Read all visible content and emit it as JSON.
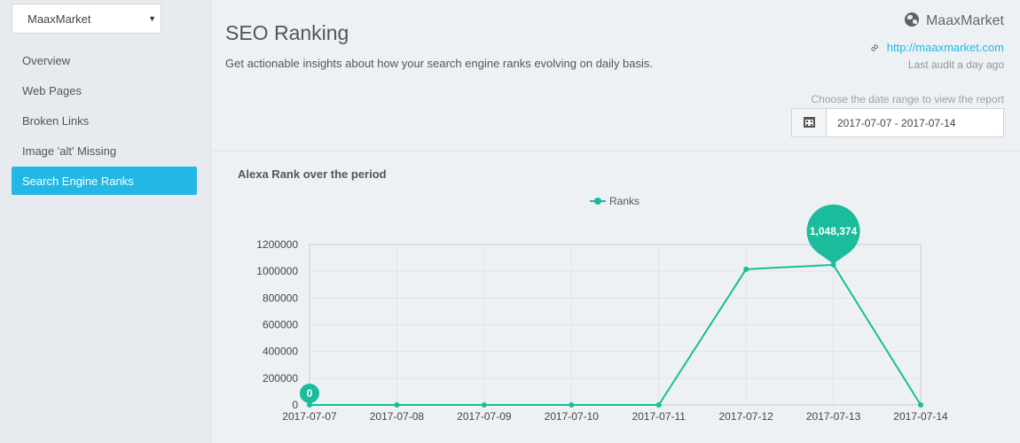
{
  "sidebar": {
    "site_select": "MaaxMarket",
    "items": [
      {
        "label": "Overview",
        "active": false
      },
      {
        "label": "Web Pages",
        "active": false
      },
      {
        "label": "Broken Links",
        "active": false
      },
      {
        "label": "Image 'alt' Missing",
        "active": false
      },
      {
        "label": "Search Engine Ranks",
        "active": true
      }
    ]
  },
  "header": {
    "title": "SEO Ranking",
    "description": "Get actionable insights about how your search engine ranks evolving on daily basis.",
    "site_name": "MaaxMarket",
    "site_url": "http://maaxmarket.com",
    "last_audit": "Last audit a day ago",
    "date_hint": "Choose the date range to view the report",
    "date_range": "2017-07-07 - 2017-07-14"
  },
  "icons": {
    "site": "globe-icon",
    "link": "link-icon",
    "calendar": "calendar-icon"
  },
  "colors": {
    "accent": "#23b7e5",
    "series": "#1abc9c"
  },
  "chart_data": {
    "type": "line",
    "title": "Alexa Rank over the period",
    "categories": [
      "2017-07-07",
      "2017-07-08",
      "2017-07-09",
      "2017-07-10",
      "2017-07-11",
      "2017-07-12",
      "2017-07-13",
      "2017-07-14"
    ],
    "series": [
      {
        "name": "Ranks",
        "values": [
          0,
          0,
          0,
          0,
          0,
          1015000,
          1048374,
          0
        ]
      }
    ],
    "ylim": [
      0,
      1200000
    ],
    "yticks": [
      0,
      200000,
      400000,
      600000,
      800000,
      1000000,
      1200000
    ],
    "grid": true,
    "legend": "top-center",
    "annotations": [
      {
        "category": "2017-07-07",
        "label": "0"
      },
      {
        "category": "2017-07-13",
        "label": "1,048,374"
      }
    ]
  }
}
